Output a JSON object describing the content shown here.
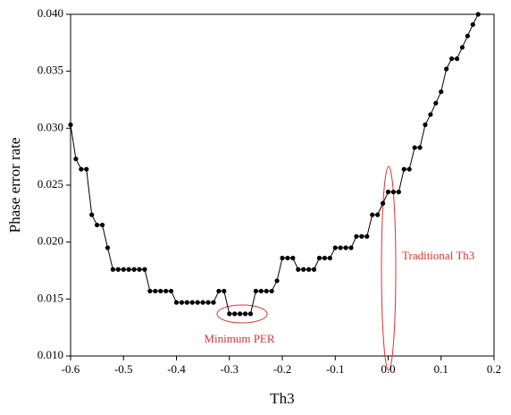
{
  "chart_data": {
    "type": "line",
    "xlabel": "Th3",
    "ylabel": "Phase error rate",
    "x": [
      -0.6,
      -0.59,
      -0.58,
      -0.57,
      -0.56,
      -0.55,
      -0.54,
      -0.53,
      -0.52,
      -0.51,
      -0.5,
      -0.49,
      -0.48,
      -0.47,
      -0.46,
      -0.45,
      -0.44,
      -0.43,
      -0.42,
      -0.41,
      -0.4,
      -0.39,
      -0.38,
      -0.37,
      -0.36,
      -0.35,
      -0.34,
      -0.33,
      -0.32,
      -0.31,
      -0.3,
      -0.29,
      -0.28,
      -0.27,
      -0.26,
      -0.25,
      -0.24,
      -0.23,
      -0.22,
      -0.21,
      -0.2,
      -0.19,
      -0.18,
      -0.17,
      -0.16,
      -0.15,
      -0.14,
      -0.13,
      -0.12,
      -0.11,
      -0.1,
      -0.09,
      -0.08,
      -0.07,
      -0.06,
      -0.05,
      -0.04,
      -0.03,
      -0.02,
      -0.01,
      0.0,
      0.01,
      0.02,
      0.03,
      0.04,
      0.05,
      0.06,
      0.07,
      0.08,
      0.09,
      0.1,
      0.11,
      0.12,
      0.13,
      0.14,
      0.15,
      0.16,
      0.17
    ],
    "series": [
      {
        "name": "PER",
        "color": "#000000",
        "values": [
          0.0303,
          0.0273,
          0.0264,
          0.0264,
          0.0224,
          0.0215,
          0.0215,
          0.0195,
          0.0176,
          0.0176,
          0.0176,
          0.0176,
          0.0176,
          0.0176,
          0.0176,
          0.0157,
          0.0157,
          0.0157,
          0.0157,
          0.0157,
          0.0147,
          0.0147,
          0.0147,
          0.0147,
          0.0147,
          0.0147,
          0.0147,
          0.0147,
          0.0157,
          0.0157,
          0.0137,
          0.0137,
          0.0137,
          0.0137,
          0.0137,
          0.0157,
          0.0157,
          0.0157,
          0.0157,
          0.0166,
          0.0186,
          0.0186,
          0.0186,
          0.0176,
          0.0176,
          0.0176,
          0.0176,
          0.0186,
          0.0186,
          0.0186,
          0.0195,
          0.0195,
          0.0195,
          0.0195,
          0.0205,
          0.0205,
          0.0205,
          0.0224,
          0.0224,
          0.0234,
          0.0244,
          0.0244,
          0.0244,
          0.0264,
          0.0264,
          0.0283,
          0.0283,
          0.0303,
          0.0312,
          0.0322,
          0.0332,
          0.0352,
          0.0361,
          0.0361,
          0.0371,
          0.0381,
          0.0391,
          0.04
        ]
      }
    ],
    "xlim": [
      -0.6,
      0.2
    ],
    "xticks": [
      -0.6,
      -0.5,
      -0.4,
      -0.3,
      -0.2,
      -0.1,
      {
        "value": 0,
        "label": "0.0"
      },
      0.1,
      0.2
    ],
    "ylim": [
      0.01,
      0.04
    ],
    "yticks": [
      {
        "value": 0.01,
        "label": "0.010"
      },
      0.015,
      {
        "value": 0.02,
        "label": "0.020"
      },
      0.025,
      {
        "value": 0.03,
        "label": "0.030"
      },
      0.035,
      {
        "value": 0.04,
        "label": "0.040"
      }
    ],
    "annotations": [
      "Minimum PER",
      "Traditional Th3"
    ]
  }
}
